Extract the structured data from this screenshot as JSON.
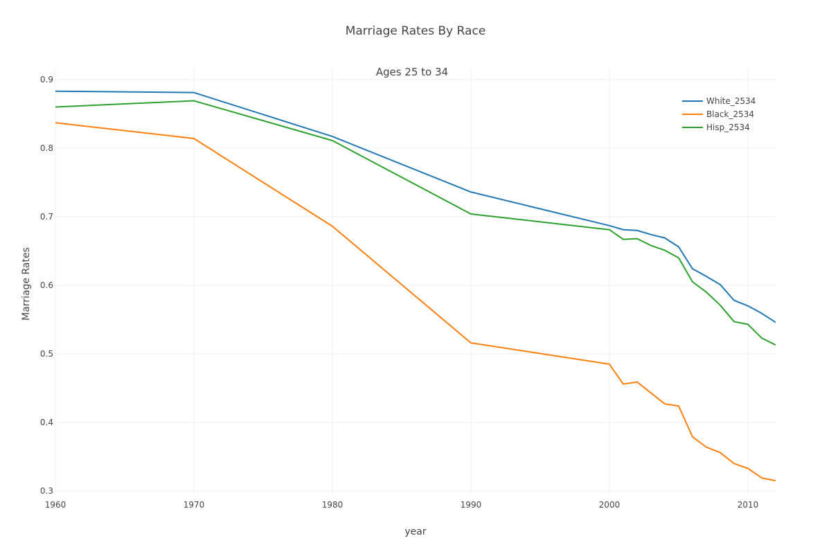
{
  "chart_data": {
    "type": "line",
    "title": "Marriage Rates By Race",
    "annotation": "Ages 25 to 34",
    "xlabel": "year",
    "ylabel": "Marriage Rates",
    "xlim": [
      1960,
      2012
    ],
    "ylim": [
      0.295,
      0.915
    ],
    "x_ticks": [
      1960,
      1970,
      1980,
      1990,
      2000,
      2010
    ],
    "x_tick_labels": [
      "1960",
      "1970",
      "1980",
      "1990",
      "2000",
      "2010"
    ],
    "y_ticks": [
      0.3,
      0.4,
      0.5,
      0.6,
      0.7,
      0.8,
      0.9
    ],
    "y_tick_labels": [
      "0.3",
      "0.4",
      "0.5",
      "0.6",
      "0.7",
      "0.8",
      "0.9"
    ],
    "grid": true,
    "legend_position": "top-right",
    "x": [
      1960,
      1970,
      1980,
      1990,
      2000,
      2001,
      2002,
      2003,
      2004,
      2005,
      2006,
      2007,
      2008,
      2009,
      2010,
      2011,
      2012
    ],
    "series": [
      {
        "name": "White_2534",
        "color": "#1f77b4",
        "values": [
          0.883,
          0.881,
          0.817,
          0.736,
          0.687,
          0.681,
          0.68,
          0.674,
          0.669,
          0.656,
          0.624,
          0.613,
          0.601,
          0.578,
          0.57,
          0.559,
          0.546
        ]
      },
      {
        "name": "Black_2534",
        "color": "#ff7f0e",
        "values": [
          0.837,
          0.814,
          0.686,
          0.516,
          0.485,
          0.456,
          0.459,
          0.443,
          0.427,
          0.424,
          0.379,
          0.364,
          0.356,
          0.34,
          0.333,
          0.319,
          0.315
        ]
      },
      {
        "name": "Hisp_2534",
        "color": "#2ca02c",
        "values": [
          0.86,
          0.869,
          0.811,
          0.704,
          0.681,
          0.667,
          0.668,
          0.658,
          0.651,
          0.64,
          0.605,
          0.59,
          0.571,
          0.547,
          0.543,
          0.523,
          0.513
        ]
      }
    ]
  }
}
